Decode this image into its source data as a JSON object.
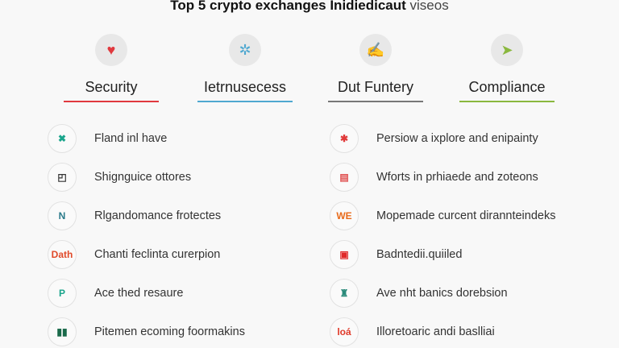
{
  "title": {
    "bold": "Top 5 crypto exchanges Inidiedicaut",
    "light": "viseos"
  },
  "categories": [
    {
      "label": "Security",
      "icon": "heart-icon",
      "glyph": "♥",
      "color": "#e0393e"
    },
    {
      "label": "Ietrnusecess",
      "icon": "network-icon",
      "glyph": "✲",
      "color": "#4fa8d0"
    },
    {
      "label": "Dut Funtery",
      "icon": "hand-icon",
      "glyph": "✍",
      "color": "#777777"
    },
    {
      "label": "Compliance",
      "icon": "arrow-icon",
      "glyph": "➤",
      "color": "#8ab83e"
    }
  ],
  "left_items": [
    {
      "text": "Fland inl have",
      "icon": "close-circle-icon",
      "glyph": "✖",
      "color": "#1aa58c"
    },
    {
      "text": "Shignguice ottores",
      "icon": "frame-icon",
      "glyph": "◰",
      "color": "#333333"
    },
    {
      "text": "Rlgandomance frotectes",
      "icon": "arrow-logo-icon",
      "glyph": "N",
      "color": "#2a7a8a"
    },
    {
      "text": "Chanti feclinta curerpion",
      "icon": "brand-logo-icon",
      "glyph": "Dath",
      "color": "#e04a2a"
    },
    {
      "text": "Ace thed resaure",
      "icon": "p-logo-icon",
      "glyph": "P",
      "color": "#1aa58c"
    },
    {
      "text": "Pitemen ecoming foormakins",
      "icon": "blocks-icon",
      "glyph": "▮▮",
      "color": "#1a6a4a"
    }
  ],
  "right_items": [
    {
      "text": "Persiow a ixplore and enipainty",
      "icon": "tree-icon",
      "glyph": "✱",
      "color": "#e03a3a"
    },
    {
      "text": "Wforts in prhiaede and zoteons",
      "icon": "calendar-icon",
      "glyph": "▤",
      "color": "#e05050"
    },
    {
      "text": "Mopemade curcent dirannteindeks",
      "icon": "we-logo-icon",
      "glyph": "WE",
      "color": "#e86a1a"
    },
    {
      "text": "Badntedii.quiiled",
      "icon": "badge-icon",
      "glyph": "▣",
      "color": "#e02a2a"
    },
    {
      "text": "Ave nht banics dorebsion",
      "icon": "bank-icon",
      "glyph": "♜",
      "color": "#2a8a7a"
    },
    {
      "text": "Illoretoaric andi baslliai",
      "icon": "text-logo-icon",
      "glyph": "loá",
      "color": "#e03a2a"
    }
  ]
}
